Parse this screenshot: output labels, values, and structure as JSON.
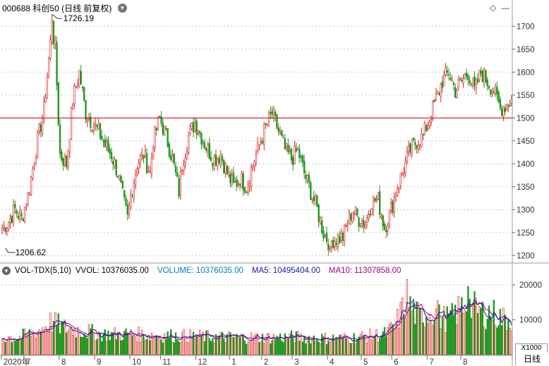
{
  "header": {
    "code": "000688",
    "name": "科创50",
    "mode": "(日线 前复权)",
    "dropdown_icon": "chevron-down-icon"
  },
  "toolbar_icons": [
    "diamond-icon",
    "minus-icon"
  ],
  "price_panel": {
    "high_label": "1726.19",
    "low_label": "1206.62",
    "ref_line": 1500,
    "ref_line_color": "#cc0000",
    "up_color": "#e02020",
    "down_color": "#229922"
  },
  "volume_panel": {
    "indicator": "VOL-TDX(5,10)",
    "vvol_label": "VVOL:",
    "vvol_value": "10376035.00",
    "volume_label": "VOLUME:",
    "volume_value": "10376035.00",
    "ma5_label": "MA5:",
    "ma5_value": "10495404.00",
    "ma10_label": "MA10:",
    "ma10_value": "11307858.00",
    "volume_color": "#0080c0",
    "ma5_color": "#1a1aa6",
    "ma10_color": "#a0008a",
    "unit": "X1000"
  },
  "timeframe": "日线",
  "chart_data": [
    {
      "type": "candlestick",
      "y_axis_ticks": [
        1200,
        1250,
        1300,
        1350,
        1400,
        1450,
        1500,
        1550,
        1600,
        1650,
        1700
      ],
      "ylim": [
        1185,
        1745
      ],
      "x_labels": [
        "2020年",
        "7",
        "8",
        "9",
        "10",
        "11",
        "12",
        "1",
        "2",
        "3",
        "4",
        "5",
        "6",
        "7",
        "8"
      ],
      "x_label_positions": [
        0,
        14,
        36,
        58,
        80,
        99,
        121,
        142,
        162,
        181,
        203,
        224,
        243,
        265,
        286
      ],
      "num_bars": 318,
      "high": 1726.19,
      "low": 1206.62,
      "reference_level": 1500,
      "keypoints": [
        [
          0,
          1260
        ],
        [
          4,
          1275
        ],
        [
          8,
          1300
        ],
        [
          12,
          1280
        ],
        [
          16,
          1330
        ],
        [
          22,
          1450
        ],
        [
          26,
          1520
        ],
        [
          31,
          1700
        ],
        [
          33,
          1650
        ],
        [
          36,
          1420
        ],
        [
          40,
          1400
        ],
        [
          44,
          1540
        ],
        [
          48,
          1600
        ],
        [
          52,
          1510
        ],
        [
          56,
          1490
        ],
        [
          60,
          1470
        ],
        [
          64,
          1440
        ],
        [
          68,
          1420
        ],
        [
          72,
          1380
        ],
        [
          76,
          1310
        ],
        [
          78,
          1280
        ],
        [
          80,
          1330
        ],
        [
          84,
          1400
        ],
        [
          88,
          1420
        ],
        [
          92,
          1380
        ],
        [
          94,
          1450
        ],
        [
          98,
          1500
        ],
        [
          102,
          1460
        ],
        [
          106,
          1410
        ],
        [
          110,
          1340
        ],
        [
          112,
          1400
        ],
        [
          116,
          1460
        ],
        [
          120,
          1490
        ],
        [
          124,
          1460
        ],
        [
          128,
          1430
        ],
        [
          132,
          1410
        ],
        [
          136,
          1420
        ],
        [
          140,
          1380
        ],
        [
          144,
          1350
        ],
        [
          148,
          1370
        ],
        [
          152,
          1350
        ],
        [
          156,
          1400
        ],
        [
          160,
          1440
        ],
        [
          164,
          1480
        ],
        [
          168,
          1510
        ],
        [
          172,
          1470
        ],
        [
          176,
          1430
        ],
        [
          180,
          1410
        ],
        [
          184,
          1430
        ],
        [
          188,
          1380
        ],
        [
          192,
          1340
        ],
        [
          196,
          1300
        ],
        [
          200,
          1250
        ],
        [
          204,
          1225
        ],
        [
          206,
          1235
        ],
        [
          212,
          1240
        ],
        [
          218,
          1300
        ],
        [
          222,
          1280
        ],
        [
          226,
          1270
        ],
        [
          230,
          1320
        ],
        [
          234,
          1320
        ],
        [
          238,
          1260
        ],
        [
          242,
          1300
        ],
        [
          246,
          1350
        ],
        [
          250,
          1390
        ],
        [
          254,
          1430
        ],
        [
          258,
          1450
        ],
        [
          262,
          1460
        ],
        [
          266,
          1500
        ],
        [
          270,
          1540
        ],
        [
          274,
          1580
        ],
        [
          278,
          1600
        ],
        [
          282,
          1560
        ],
        [
          286,
          1580
        ],
        [
          290,
          1600
        ],
        [
          294,
          1560
        ],
        [
          298,
          1600
        ],
        [
          302,
          1580
        ],
        [
          306,
          1560
        ],
        [
          310,
          1520
        ],
        [
          314,
          1530
        ],
        [
          317,
          1540
        ]
      ]
    },
    {
      "type": "bar",
      "title": "VOL-TDX(5,10)",
      "y_axis_ticks": [
        10000,
        20000
      ],
      "ylim": [
        0,
        22000
      ],
      "series": [
        {
          "name": "VOLUME",
          "approx_range": [
            2500,
            22000
          ]
        },
        {
          "name": "MA5",
          "approx_range": [
            4000,
            16000
          ]
        },
        {
          "name": "MA10",
          "approx_range": [
            4000,
            15000
          ]
        }
      ],
      "keypoints": [
        [
          0,
          5200
        ],
        [
          10,
          5000
        ],
        [
          16,
          6000
        ],
        [
          20,
          6500
        ],
        [
          26,
          8000
        ],
        [
          30,
          9500
        ],
        [
          34,
          9000
        ],
        [
          38,
          8000
        ],
        [
          44,
          7500
        ],
        [
          50,
          7000
        ],
        [
          56,
          6500
        ],
        [
          62,
          6000
        ],
        [
          70,
          6000
        ],
        [
          80,
          6000
        ],
        [
          90,
          5800
        ],
        [
          100,
          5600
        ],
        [
          110,
          5500
        ],
        [
          120,
          5400
        ],
        [
          130,
          5200
        ],
        [
          140,
          5100
        ],
        [
          150,
          5000
        ],
        [
          160,
          5000
        ],
        [
          170,
          5000
        ],
        [
          180,
          5200
        ],
        [
          190,
          5000
        ],
        [
          200,
          4800
        ],
        [
          210,
          4800
        ],
        [
          220,
          5000
        ],
        [
          230,
          5500
        ],
        [
          238,
          6000
        ],
        [
          244,
          8000
        ],
        [
          248,
          12000
        ],
        [
          252,
          16500
        ],
        [
          256,
          12500
        ],
        [
          260,
          11000
        ],
        [
          264,
          12000
        ],
        [
          268,
          13000
        ],
        [
          272,
          11000
        ],
        [
          276,
          10500
        ],
        [
          280,
          11000
        ],
        [
          284,
          13000
        ],
        [
          288,
          15000
        ],
        [
          292,
          14000
        ],
        [
          296,
          13000
        ],
        [
          300,
          12000
        ],
        [
          304,
          12500
        ],
        [
          308,
          11500
        ],
        [
          312,
          10500
        ],
        [
          317,
          10300
        ]
      ]
    }
  ]
}
